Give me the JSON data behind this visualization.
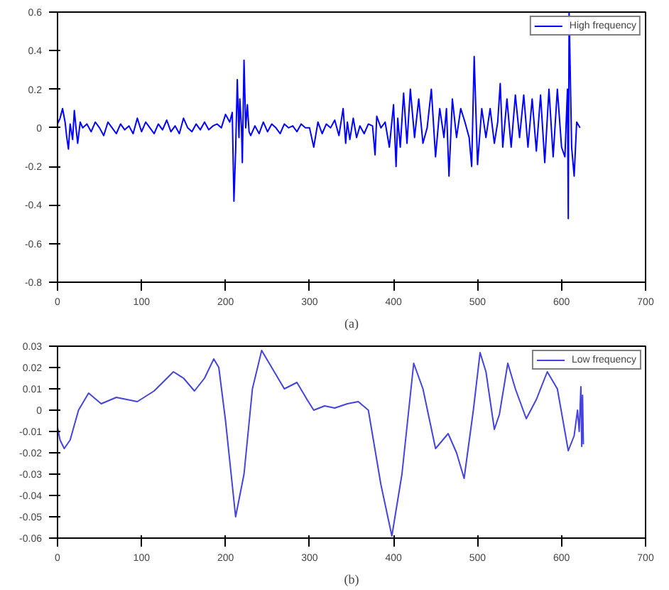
{
  "chart_data": [
    {
      "type": "line",
      "xlabel": "(a)",
      "xlim": [
        0,
        700
      ],
      "ylim": [
        -0.8,
        0.6
      ],
      "xticks": [
        0,
        100,
        200,
        300,
        400,
        500,
        600,
        700
      ],
      "yticks": [
        -0.8,
        -0.6,
        -0.4,
        -0.2,
        0,
        0.2,
        0.4,
        0.6
      ],
      "grid": false,
      "legend": "top right",
      "series": [
        {
          "name": "High frequency",
          "color": "#0000ff",
          "x": [
            0,
            3,
            6,
            9,
            11,
            13,
            15,
            18,
            20,
            22,
            24,
            27,
            30,
            35,
            40,
            45,
            50,
            55,
            60,
            65,
            70,
            75,
            80,
            85,
            90,
            95,
            100,
            105,
            110,
            115,
            120,
            125,
            130,
            135,
            140,
            145,
            150,
            155,
            160,
            165,
            170,
            175,
            180,
            185,
            190,
            195,
            200,
            205,
            208,
            210,
            212,
            214,
            216,
            217,
            219,
            220,
            222,
            224,
            226,
            228,
            230,
            235,
            240,
            245,
            250,
            255,
            260,
            265,
            270,
            275,
            280,
            285,
            290,
            295,
            300,
            305,
            310,
            315,
            320,
            325,
            330,
            335,
            340,
            343,
            345,
            348,
            352,
            356,
            360,
            365,
            370,
            375,
            378,
            380,
            385,
            390,
            395,
            400,
            403,
            405,
            408,
            412,
            416,
            420,
            425,
            430,
            435,
            440,
            445,
            450,
            455,
            460,
            463,
            466,
            470,
            475,
            480,
            485,
            490,
            493,
            496,
            500,
            505,
            510,
            515,
            520,
            524,
            527,
            530,
            535,
            540,
            545,
            550,
            555,
            560,
            565,
            570,
            575,
            580,
            585,
            590,
            595,
            600,
            604,
            607,
            608,
            609,
            612,
            615,
            618,
            622
          ],
          "values": [
            0.02,
            0.05,
            0.1,
            0.03,
            -0.05,
            -0.11,
            0.02,
            -0.06,
            0.09,
            0.0,
            -0.08,
            0.03,
            0.0,
            0.02,
            -0.02,
            0.03,
            0.0,
            -0.04,
            0.03,
            0.0,
            -0.03,
            0.02,
            -0.01,
            0.01,
            -0.03,
            0.05,
            -0.02,
            0.03,
            0.0,
            -0.03,
            0.02,
            -0.01,
            0.04,
            -0.02,
            0.01,
            -0.03,
            0.05,
            0.0,
            -0.02,
            0.02,
            -0.01,
            0.03,
            -0.01,
            0.01,
            0.02,
            0.0,
            0.07,
            0.03,
            0.08,
            -0.38,
            -0.12,
            0.25,
            -0.05,
            0.15,
            0.0,
            -0.18,
            0.35,
            0.0,
            0.12,
            -0.02,
            -0.04,
            0.01,
            -0.03,
            0.03,
            -0.02,
            0.02,
            0.0,
            -0.03,
            0.02,
            0.0,
            0.01,
            -0.02,
            0.02,
            0.0,
            0.0,
            -0.1,
            0.03,
            -0.03,
            0.02,
            0.0,
            0.04,
            -0.04,
            0.1,
            -0.08,
            0.03,
            -0.06,
            0.05,
            -0.05,
            0.01,
            -0.03,
            0.02,
            0.01,
            -0.14,
            0.06,
            0.0,
            0.03,
            -0.1,
            0.12,
            -0.2,
            0.05,
            -0.1,
            0.18,
            -0.08,
            0.2,
            -0.05,
            0.15,
            -0.08,
            0.0,
            0.2,
            -0.15,
            0.1,
            -0.05,
            0.1,
            -0.25,
            0.15,
            -0.05,
            0.1,
            0.03,
            -0.05,
            -0.2,
            0.37,
            -0.19,
            0.1,
            -0.05,
            0.1,
            -0.08,
            0.03,
            0.23,
            -0.1,
            0.15,
            -0.1,
            0.17,
            -0.05,
            0.17,
            -0.1,
            0.15,
            -0.12,
            0.17,
            -0.18,
            0.2,
            -0.15,
            0.2,
            -0.1,
            -0.15,
            0.2,
            -0.47,
            0.6,
            -0.1,
            -0.25,
            0.03,
            0.0
          ]
        }
      ]
    },
    {
      "type": "line",
      "xlabel": "(b)",
      "xlim": [
        0,
        700
      ],
      "ylim": [
        -0.06,
        0.03
      ],
      "xticks": [
        0,
        100,
        200,
        300,
        400,
        500,
        600,
        700
      ],
      "yticks": [
        -0.06,
        -0.05,
        -0.04,
        -0.03,
        -0.02,
        -0.01,
        0,
        0.01,
        0.02,
        0.03
      ],
      "grid": false,
      "legend": "top right",
      "series": [
        {
          "name": "Low frequency",
          "color": "#4444dd",
          "x": [
            0,
            3,
            8,
            15,
            25,
            37,
            52,
            70,
            95,
            115,
            138,
            150,
            163,
            175,
            186,
            192,
            200,
            212,
            222,
            232,
            243,
            255,
            270,
            285,
            297,
            305,
            318,
            330,
            345,
            358,
            370,
            385,
            398,
            410,
            424,
            435,
            450,
            465,
            475,
            484,
            495,
            503,
            510,
            520,
            526,
            536,
            545,
            558,
            570,
            583,
            595,
            608,
            615,
            619,
            621,
            623,
            624,
            625,
            626
          ],
          "values": [
            -0.008,
            -0.014,
            -0.018,
            -0.014,
            0.0,
            0.008,
            0.003,
            0.006,
            0.004,
            0.009,
            0.018,
            0.015,
            0.009,
            0.015,
            0.024,
            0.02,
            -0.005,
            -0.05,
            -0.03,
            0.01,
            0.028,
            0.02,
            0.01,
            0.013,
            0.005,
            0.0,
            0.002,
            0.001,
            0.003,
            0.004,
            0.0,
            -0.035,
            -0.059,
            -0.03,
            0.022,
            0.01,
            -0.018,
            -0.011,
            -0.02,
            -0.032,
            0.0,
            0.027,
            0.018,
            -0.009,
            -0.002,
            0.022,
            0.01,
            -0.004,
            0.005,
            0.018,
            0.01,
            -0.019,
            -0.012,
            0.0,
            -0.01,
            0.011,
            -0.017,
            0.007,
            -0.016
          ]
        }
      ]
    }
  ]
}
